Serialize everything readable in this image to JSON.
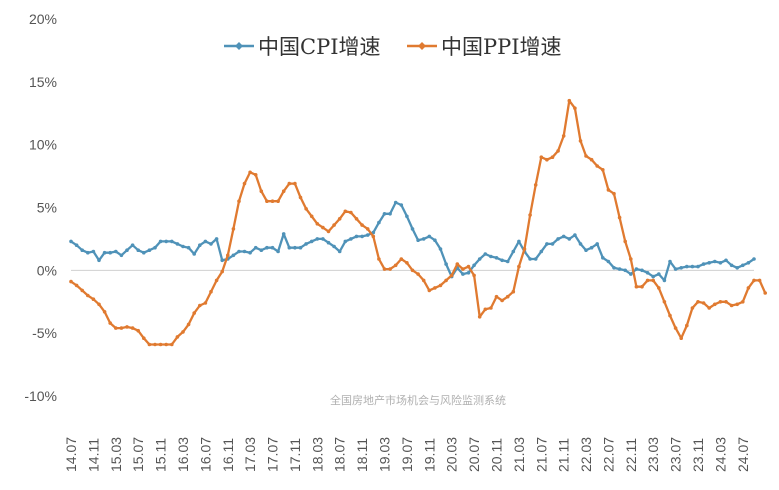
{
  "chart_data": {
    "type": "line",
    "title": "",
    "xlabel": "",
    "ylabel": "",
    "ylim": [
      -10,
      20
    ],
    "y_ticks": [
      -10,
      -5,
      0,
      5,
      10,
      15,
      20
    ],
    "y_tick_labels": [
      "-10%",
      "-5%",
      "0%",
      "5%",
      "10%",
      "15%",
      "20%"
    ],
    "x_tick_labels": [
      "14.07",
      "14.11",
      "15.03",
      "15.07",
      "15.11",
      "16.03",
      "16.07",
      "16.11",
      "17.03",
      "17.07",
      "17.11",
      "18.03",
      "18.07",
      "18.11",
      "19.03",
      "19.07",
      "19.11",
      "20.03",
      "20.07",
      "20.11",
      "21.03",
      "21.07",
      "21.11",
      "22.03",
      "22.07",
      "22.11",
      "23.03",
      "23.07",
      "23.11",
      "24.03",
      "24.07"
    ],
    "x_start": "2014-07",
    "months": 123,
    "legend_position": "top-center",
    "watermark": "全国房地产市场机会与风险监测系统",
    "series": [
      {
        "name": "中国CPI增速",
        "color": "#4f92b8",
        "values": [
          2.3,
          2.0,
          1.6,
          1.4,
          1.5,
          0.8,
          1.4,
          1.4,
          1.5,
          1.2,
          1.6,
          2.0,
          1.6,
          1.4,
          1.6,
          1.8,
          2.3,
          2.3,
          2.3,
          2.1,
          1.9,
          1.8,
          1.3,
          2.0,
          2.3,
          2.1,
          2.5,
          0.8,
          0.9,
          1.2,
          1.5,
          1.5,
          1.4,
          1.8,
          1.6,
          1.8,
          1.8,
          1.5,
          2.9,
          1.8,
          1.8,
          1.8,
          2.1,
          2.3,
          2.5,
          2.5,
          2.2,
          1.9,
          1.5,
          2.3,
          2.5,
          2.7,
          2.7,
          2.8,
          3.0,
          3.8,
          4.5,
          4.5,
          5.4,
          5.2,
          4.3,
          3.3,
          2.4,
          2.5,
          2.7,
          2.4,
          1.7,
          0.5,
          -0.5,
          0.2,
          -0.3,
          -0.2,
          0.4,
          0.9,
          1.3,
          1.1,
          1.0,
          0.8,
          0.7,
          1.5,
          2.3,
          1.5,
          0.9,
          0.9,
          1.5,
          2.1,
          2.1,
          2.5,
          2.7,
          2.5,
          2.8,
          2.1,
          1.6,
          1.8,
          2.1,
          1.0,
          0.7,
          0.2,
          0.1,
          0.0,
          -0.3,
          0.1,
          0.0,
          -0.2,
          -0.5,
          -0.3,
          -0.8,
          0.7,
          0.1,
          0.2,
          0.3,
          0.3,
          0.3,
          0.5,
          0.6,
          0.7,
          0.6,
          0.8,
          0.4,
          0.2,
          0.4,
          0.6,
          0.9
        ]
      },
      {
        "name": "中国PPI增速",
        "color": "#e07a30",
        "values": [
          -0.9,
          -1.2,
          -1.6,
          -2.0,
          -2.3,
          -2.7,
          -3.3,
          -4.2,
          -4.6,
          -4.6,
          -4.5,
          -4.6,
          -4.8,
          -5.4,
          -5.9,
          -5.9,
          -5.9,
          -5.9,
          -5.9,
          -5.3,
          -4.9,
          -4.3,
          -3.4,
          -2.8,
          -2.6,
          -1.7,
          -0.8,
          -0.1,
          1.2,
          3.3,
          5.5,
          6.9,
          7.8,
          7.6,
          6.3,
          5.5,
          5.5,
          5.5,
          6.3,
          6.9,
          6.9,
          5.8,
          4.9,
          4.3,
          3.7,
          3.4,
          3.1,
          3.6,
          4.1,
          4.7,
          4.6,
          4.1,
          3.6,
          3.3,
          2.7,
          0.9,
          0.1,
          0.1,
          0.4,
          0.9,
          0.6,
          0.0,
          -0.3,
          -0.8,
          -1.6,
          -1.4,
          -1.2,
          -0.8,
          -0.4,
          0.5,
          0.1,
          0.3,
          -0.4,
          -3.7,
          -3.1,
          -3.0,
          -2.1,
          -2.4,
          -2.1,
          -1.7,
          0.3,
          1.7,
          4.4,
          6.8,
          9.0,
          8.8,
          9.0,
          9.5,
          10.7,
          13.5,
          12.9,
          10.3,
          9.1,
          8.8,
          8.3,
          8.0,
          6.4,
          6.1,
          4.2,
          2.3,
          0.9,
          -1.3,
          -1.3,
          -0.8,
          -0.8,
          -1.4,
          -2.5,
          -3.6,
          -4.6,
          -5.4,
          -4.4,
          -3.0,
          -2.5,
          -2.6,
          -3.0,
          -2.7,
          -2.5,
          -2.5,
          -2.8,
          -2.7,
          -2.5,
          -1.4,
          -0.8,
          -0.8,
          -1.8
        ]
      }
    ]
  }
}
